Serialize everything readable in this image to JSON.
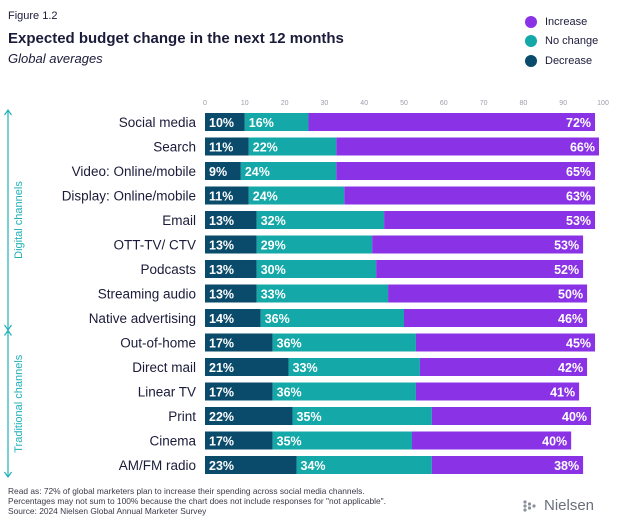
{
  "figure_label": "Figure 1.2",
  "title": "Expected budget change in the next 12 months",
  "subtitle": "Global averages",
  "colors": {
    "decrease": "#0a4a6a",
    "no_change": "#14a8a8",
    "increase": "#8a33e6",
    "axis_text": "#9aa0aa",
    "group_accent": "#20b0b8",
    "label": "#1b1b3a"
  },
  "legend": [
    {
      "label": "Increase",
      "color": "#8a33e6"
    },
    {
      "label": "No change",
      "color": "#14a8a8"
    },
    {
      "label": "Decrease",
      "color": "#0a4a6a"
    }
  ],
  "chart_data": {
    "type": "bar",
    "orientation": "horizontal",
    "stacked": true,
    "title": "Expected budget change in the next 12 months",
    "subtitle": "Global averages",
    "xlim": [
      0,
      100
    ],
    "xticks": [
      0,
      10,
      20,
      30,
      40,
      50,
      60,
      70,
      80,
      90,
      100
    ],
    "categories": [
      "Social media",
      "Search",
      "Video: Online/mobile",
      "Display: Online/mobile",
      "Email",
      "OTT-TV/ CTV",
      "Podcasts",
      "Streaming audio",
      "Native advertising",
      "Out-of-home",
      "Direct mail",
      "Linear TV",
      "Print",
      "Cinema",
      "AM/FM radio"
    ],
    "groups": [
      {
        "label": "Digital channels",
        "categories": [
          "Social media",
          "Search",
          "Video: Online/mobile",
          "Display: Online/mobile",
          "Email",
          "OTT-TV/ CTV",
          "Podcasts",
          "Streaming audio",
          "Native advertising"
        ]
      },
      {
        "label": "Traditional channels",
        "categories": [
          "Out-of-home",
          "Direct mail",
          "Linear TV",
          "Print",
          "Cinema",
          "AM/FM radio"
        ]
      }
    ],
    "series": [
      {
        "name": "Decrease",
        "color": "#0a4a6a",
        "values": [
          10,
          11,
          9,
          11,
          13,
          13,
          13,
          13,
          14,
          17,
          21,
          17,
          22,
          17,
          23
        ],
        "labels": [
          "10%",
          "11%",
          "9%",
          "11%",
          "13%",
          "13%",
          "13%",
          "13%",
          "14%",
          "17%",
          "21%",
          "17%",
          "22%",
          "17%",
          "23%"
        ]
      },
      {
        "name": "No change",
        "color": "#14a8a8",
        "values": [
          16,
          22,
          24,
          24,
          32,
          29,
          30,
          33,
          36,
          36,
          33,
          36,
          35,
          35,
          34
        ],
        "labels": [
          "16%",
          "22%",
          "24%",
          "24%",
          "32%",
          "29%",
          "30%",
          "33%",
          "36%",
          "36%",
          "33%",
          "36%",
          "35%",
          "35%",
          "34%"
        ]
      },
      {
        "name": "Increase",
        "color": "#8a33e6",
        "values": [
          72,
          66,
          65,
          63,
          53,
          53,
          52,
          50,
          46,
          45,
          42,
          41,
          40,
          40,
          38
        ],
        "labels": [
          "72%",
          "66%",
          "65%",
          "63%",
          "53%",
          "53%",
          "52%",
          "50%",
          "46%",
          "45%",
          "42%",
          "41%",
          "40%",
          "40%",
          "38%"
        ]
      }
    ]
  },
  "footnotes": [
    "Read as: 72% of global marketers plan to increase their spending across social media channels.",
    "Percentages may not sum to 100% because the chart does not include responses for \"not applicable\".",
    "Source: 2024 Nielsen Global Annual Marketer Survey"
  ],
  "brand": {
    "name": "Nielsen",
    "icon": "nielsen-logo-icon"
  }
}
